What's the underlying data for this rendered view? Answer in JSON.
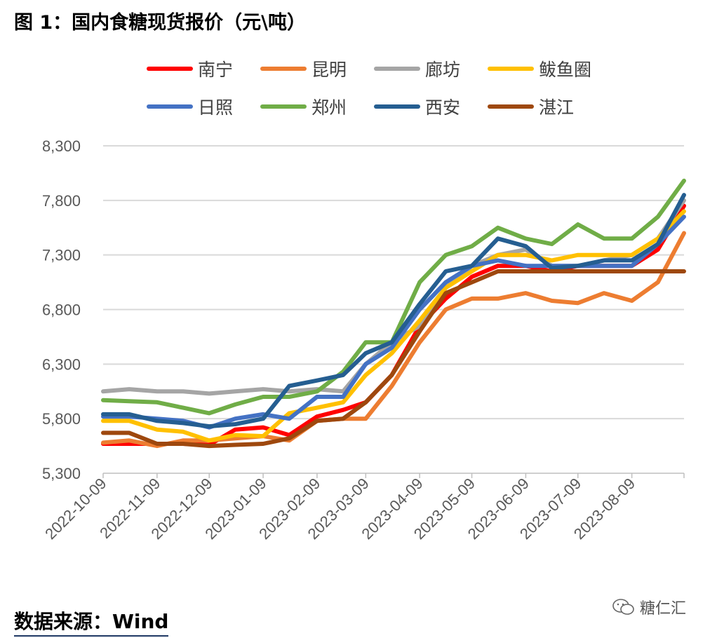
{
  "title": "图 1：国内食糖现货报价（元\\吨）",
  "source": "数据来源：Wind",
  "watermark": {
    "text": "糖仁汇",
    "icon": "wechat-icon"
  },
  "chart_data": {
    "type": "line",
    "title": "图 1：国内食糖现货报价（元\\吨）",
    "xlabel": "",
    "ylabel": "",
    "ylim": [
      5300,
      8300
    ],
    "yticks": [
      5300,
      5800,
      6300,
      6800,
      7300,
      7800,
      8300
    ],
    "ytick_labels": [
      "5,300",
      "5,800",
      "6,300",
      "6,800",
      "7,300",
      "7,800",
      "8,300"
    ],
    "xlim": [
      "2022-10-09",
      "2023-09-08"
    ],
    "xtick_labels": [
      "2022-10-09",
      "2022-11-09",
      "2022-12-09",
      "2023-01-09",
      "2023-02-09",
      "2023-03-09",
      "2023-04-09",
      "2023-05-09",
      "2023-06-09",
      "2023-07-09",
      "2023-08-09"
    ],
    "grid": "horizontal",
    "legend_placement": "top",
    "x": [
      "2022-10-09",
      "2022-10-24",
      "2022-11-09",
      "2022-11-24",
      "2022-12-09",
      "2022-12-24",
      "2023-01-09",
      "2023-01-24",
      "2023-02-09",
      "2023-02-24",
      "2023-03-09",
      "2023-03-24",
      "2023-04-09",
      "2023-04-24",
      "2023-05-09",
      "2023-05-24",
      "2023-06-09",
      "2023-06-24",
      "2023-07-09",
      "2023-07-24",
      "2023-08-09",
      "2023-08-24",
      "2023-09-08"
    ],
    "series": [
      {
        "name": "南宁",
        "color": "#ff0000",
        "values": [
          5570,
          5570,
          5570,
          5570,
          5560,
          5700,
          5720,
          5650,
          5820,
          5880,
          5950,
          6200,
          6650,
          6900,
          7100,
          7200,
          7200,
          7150,
          7200,
          7200,
          7200,
          7350,
          7750
        ]
      },
      {
        "name": "昆明",
        "color": "#ed7d31",
        "values": [
          5580,
          5600,
          5550,
          5600,
          5600,
          5620,
          5640,
          5600,
          5780,
          5800,
          5800,
          6100,
          6500,
          6800,
          6900,
          6900,
          6950,
          6880,
          6860,
          6950,
          6880,
          7050,
          7500
        ]
      },
      {
        "name": "廊坊",
        "color": "#a5a5a5",
        "values": [
          6050,
          6070,
          6050,
          6050,
          6030,
          6050,
          6070,
          6050,
          6070,
          6050,
          6300,
          6500,
          6650,
          7000,
          7200,
          7300,
          7350,
          7200,
          7200,
          7250,
          7300,
          7450,
          7800
        ]
      },
      {
        "name": "鲅鱼圈",
        "color": "#ffc000",
        "values": [
          5780,
          5780,
          5700,
          5680,
          5600,
          5650,
          5640,
          5850,
          5900,
          5950,
          6200,
          6400,
          6700,
          7000,
          7150,
          7300,
          7300,
          7250,
          7300,
          7300,
          7300,
          7450,
          7700
        ]
      },
      {
        "name": "日照",
        "color": "#4472c4",
        "values": [
          5820,
          5820,
          5800,
          5780,
          5720,
          5800,
          5840,
          5800,
          6000,
          6000,
          6300,
          6450,
          6800,
          7050,
          7200,
          7250,
          7200,
          7200,
          7200,
          7200,
          7200,
          7400,
          7650
        ]
      },
      {
        "name": "郑州",
        "color": "#70ad47",
        "values": [
          5970,
          5960,
          5950,
          5900,
          5850,
          5930,
          6000,
          6000,
          6050,
          6230,
          6500,
          6500,
          7050,
          7300,
          7380,
          7550,
          7450,
          7400,
          7580,
          7450,
          7450,
          7650,
          7980
        ]
      },
      {
        "name": "西安",
        "color": "#255e91",
        "values": [
          5840,
          5840,
          5780,
          5760,
          5730,
          5750,
          5800,
          6100,
          6150,
          6200,
          6400,
          6500,
          6850,
          7150,
          7200,
          7450,
          7380,
          7180,
          7200,
          7250,
          7250,
          7400,
          7850
        ]
      },
      {
        "name": "湛江",
        "color": "#9e480e",
        "values": [
          5670,
          5670,
          5570,
          5570,
          5550,
          5560,
          5570,
          5620,
          5780,
          5800,
          5950,
          6200,
          6600,
          6950,
          7050,
          7150,
          7150,
          7150,
          7150,
          7150,
          7150,
          7150,
          7150
        ]
      }
    ]
  }
}
